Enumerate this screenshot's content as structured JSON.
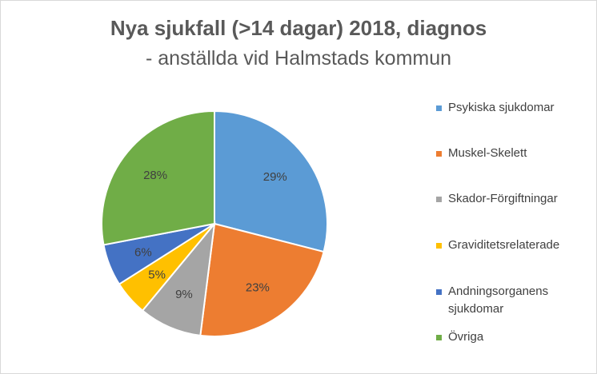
{
  "chart_data": {
    "type": "pie",
    "title": "Nya sjukfall (>14 dagar) 2018, diagnos",
    "subtitle": "- anställda vid Halmstads kommun",
    "categories": [
      "Psykiska sjukdomar",
      "Muskel-Skelett",
      "Skador-Förgiftningar",
      "Graviditetsrelaterade",
      "Andningsorganens sjukdomar",
      "Övriga"
    ],
    "values": [
      29,
      23,
      9,
      5,
      6,
      28
    ],
    "data_labels": [
      "29%",
      "23%",
      "9%",
      "5%",
      "6%",
      "28%"
    ],
    "colors": [
      "#5B9BD5",
      "#ED7D31",
      "#A5A5A5",
      "#FFC000",
      "#4472C4",
      "#70AD47"
    ],
    "legend": "right"
  }
}
